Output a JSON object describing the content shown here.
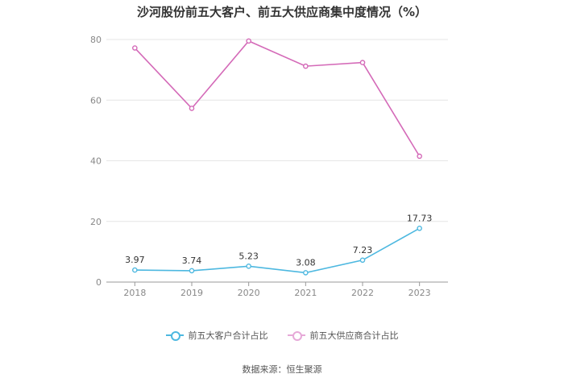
{
  "chart_data": {
    "type": "line",
    "title": "沙河股份前五大客户、前五大供应商集中度情况（%）",
    "categories": [
      "2018",
      "2019",
      "2020",
      "2021",
      "2022",
      "2023"
    ],
    "series": [
      {
        "name": "前五大客户合计占比",
        "values": [
          3.97,
          3.74,
          5.23,
          3.08,
          7.23,
          17.73
        ],
        "color": "#4db8e0",
        "show_labels": true
      },
      {
        "name": "前五大供应商合计占比",
        "values": [
          77.2,
          57.3,
          79.5,
          71.2,
          72.4,
          41.5
        ],
        "color": "#d46ab8",
        "show_labels": false
      }
    ],
    "ylim": [
      0,
      80
    ],
    "yticks": [
      0,
      20,
      40,
      60,
      80
    ],
    "grid": true,
    "legend_position": "bottom",
    "source": "数据来源：恒生聚源"
  }
}
